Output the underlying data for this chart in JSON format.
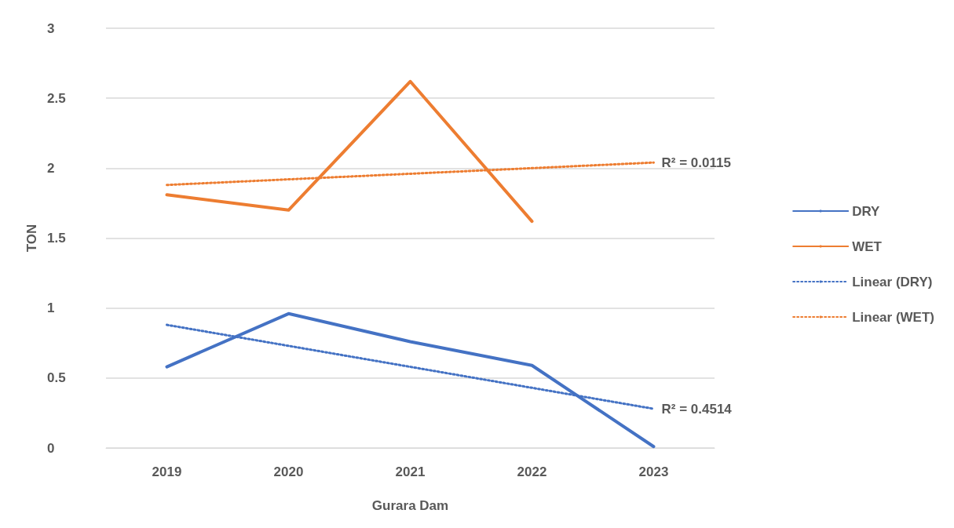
{
  "chart_data": {
    "type": "line",
    "xlabel": "Gurara Dam",
    "ylabel": "TON",
    "categories": [
      "2019",
      "2020",
      "2021",
      "2022",
      "2023"
    ],
    "series": [
      {
        "name": "DRY",
        "color": "#4472c4",
        "values": [
          0.58,
          0.96,
          0.76,
          0.59,
          0.01
        ],
        "line_style": "solid"
      },
      {
        "name": "WET",
        "color": "#ed7d31",
        "values": [
          1.81,
          1.7,
          2.62,
          1.62,
          null
        ],
        "line_style": "solid"
      },
      {
        "name": "Linear (DRY)",
        "color": "#4472c4",
        "values": [
          0.88,
          0.73,
          0.58,
          0.43,
          0.28
        ],
        "line_style": "dotted"
      },
      {
        "name": "Linear (WET)",
        "color": "#ed7d31",
        "values": [
          1.88,
          1.92,
          1.96,
          2.0,
          2.04
        ],
        "line_style": "dotted"
      }
    ],
    "annotations": [
      {
        "text": "R² = 0.0115",
        "x": "2023",
        "y": 2.04
      },
      {
        "text": "R² = 0.4514",
        "x": "2023",
        "y": 0.28
      }
    ],
    "ylim": [
      0,
      3
    ],
    "yticks": [
      0,
      0.5,
      1,
      1.5,
      2,
      2.5,
      3
    ],
    "grid": "y",
    "legend": "right",
    "marker": "none"
  }
}
